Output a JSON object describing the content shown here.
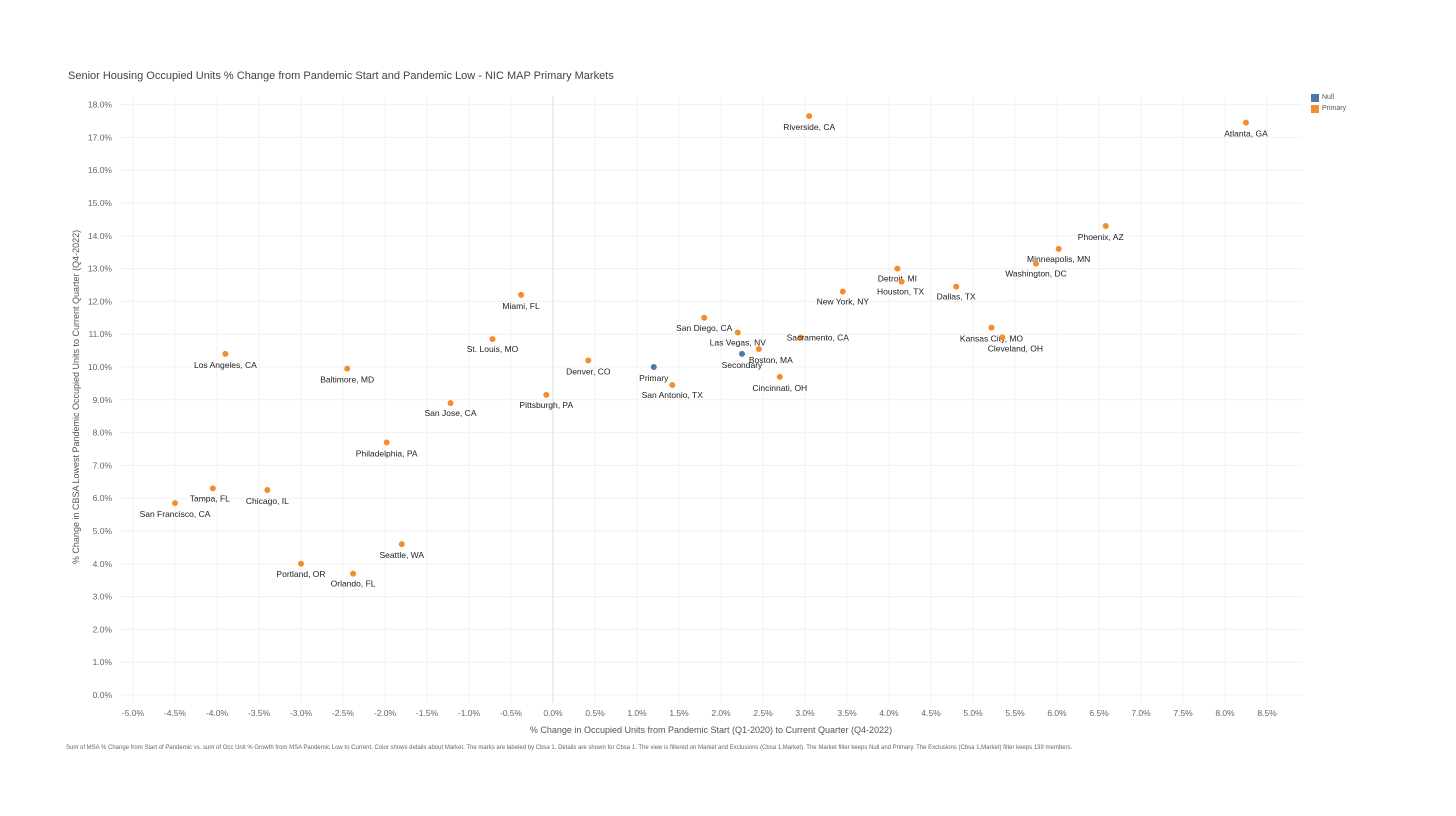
{
  "title": "Senior Housing Occupied Units % Change from Pandemic Start and Pandemic Low   - NIC MAP Primary Markets",
  "legend": {
    "items": [
      {
        "label": "Null",
        "color": "#4e79a7"
      },
      {
        "label": "Primary",
        "color": "#f28e2b"
      }
    ]
  },
  "footnote": "Sum of MSA % Change from Start of Pandemic vs. sum of Occ Unit % Growth from MSA Pandemic Low to Current.  Color shows details about Market.  The marks are labeled by Cbsa 1.  Details are shown for Cbsa 1. The view is filtered on Market and Exclusions (Cbsa 1,Market). The Market filter keeps Null and Primary. The Exclusions (Cbsa 1,Market) filter keeps 139 members.",
  "chart_data": {
    "type": "scatter",
    "xlabel": "% Change in Occupied Units from Pandemic Start (Q1-2020) to Current Quarter (Q4-2022)",
    "ylabel": "% Change in CBSA Lowest Pandemic Occupied Units to Current Quarter (Q4-2022)",
    "xlim": [
      -5.0,
      8.5
    ],
    "ylim": [
      0.0,
      18.0
    ],
    "x_ticks": [
      "-5.0%",
      "-4.5%",
      "-4.0%",
      "-3.5%",
      "-3.0%",
      "-2.5%",
      "-2.0%",
      "-1.5%",
      "-1.0%",
      "-0.5%",
      "0.0%",
      "0.5%",
      "1.0%",
      "1.5%",
      "2.0%",
      "2.5%",
      "3.0%",
      "3.5%",
      "4.0%",
      "4.5%",
      "5.0%",
      "5.5%",
      "6.0%",
      "6.5%",
      "7.0%",
      "7.5%",
      "8.0%",
      "8.5%"
    ],
    "y_ticks": [
      "0.0%",
      "1.0%",
      "2.0%",
      "3.0%",
      "4.0%",
      "5.0%",
      "6.0%",
      "7.0%",
      "8.0%",
      "9.0%",
      "10.0%",
      "11.0%",
      "12.0%",
      "13.0%",
      "14.0%",
      "15.0%",
      "16.0%",
      "17.0%",
      "18.0%"
    ],
    "grid": true,
    "legend_placement": "top-right",
    "points": [
      {
        "label": "Riverside, CA",
        "x": 3.05,
        "y": 17.65,
        "market": "Primary"
      },
      {
        "label": "Atlanta, GA",
        "x": 8.25,
        "y": 17.45,
        "market": "Primary"
      },
      {
        "label": "Phoenix, AZ",
        "x": 6.58,
        "y": 14.3,
        "market": "Primary"
      },
      {
        "label": "Minneapolis, MN",
        "x": 6.02,
        "y": 13.6,
        "market": "Primary"
      },
      {
        "label": "Washington, DC",
        "x": 5.75,
        "y": 13.15,
        "market": "Primary"
      },
      {
        "label": "Detroit, MI",
        "x": 4.1,
        "y": 13.0,
        "market": "Primary"
      },
      {
        "label": "Houston, TX",
        "x": 4.15,
        "y": 12.6,
        "market": "Primary"
      },
      {
        "label": "Dallas, TX",
        "x": 4.8,
        "y": 12.45,
        "market": "Primary"
      },
      {
        "label": "New York, NY",
        "x": 3.45,
        "y": 12.3,
        "market": "Primary"
      },
      {
        "label": "Kansas City, MO",
        "x": 5.22,
        "y": 11.2,
        "market": "Primary"
      },
      {
        "label": "Cleveland, OH",
        "x": 5.35,
        "y": 10.9,
        "market": "Primary"
      },
      {
        "label": "San Diego, CA",
        "x": 1.8,
        "y": 11.5,
        "market": "Primary"
      },
      {
        "label": "Las Vegas, NV",
        "x": 2.2,
        "y": 11.05,
        "market": "Primary"
      },
      {
        "label": "Sacramento, CA",
        "x": 2.95,
        "y": 10.9,
        "market": "Primary"
      },
      {
        "label": "Boston, MA",
        "x": 2.45,
        "y": 10.55,
        "market": "Primary"
      },
      {
        "label": "Secondary",
        "x": 2.25,
        "y": 10.4,
        "market": "Null"
      },
      {
        "label": "Cincinnati, OH",
        "x": 2.7,
        "y": 9.7,
        "market": "Primary"
      },
      {
        "label": "Primary",
        "x": 1.2,
        "y": 10.0,
        "market": "Null"
      },
      {
        "label": "San Antonio, TX",
        "x": 1.42,
        "y": 9.45,
        "market": "Primary"
      },
      {
        "label": "Denver, CO",
        "x": 0.42,
        "y": 10.2,
        "market": "Primary"
      },
      {
        "label": "Pittsburgh, PA",
        "x": -0.08,
        "y": 9.15,
        "market": "Primary"
      },
      {
        "label": "Miami, FL",
        "x": -0.38,
        "y": 12.2,
        "market": "Primary"
      },
      {
        "label": "St. Louis, MO",
        "x": -0.72,
        "y": 10.85,
        "market": "Primary"
      },
      {
        "label": "San Jose, CA",
        "x": -1.22,
        "y": 8.9,
        "market": "Primary"
      },
      {
        "label": "Baltimore, MD",
        "x": -2.45,
        "y": 9.95,
        "market": "Primary"
      },
      {
        "label": "Los Angeles, CA",
        "x": -3.9,
        "y": 10.4,
        "market": "Primary"
      },
      {
        "label": "Philadelphia, PA",
        "x": -1.98,
        "y": 7.7,
        "market": "Primary"
      },
      {
        "label": "Tampa, FL",
        "x": -4.05,
        "y": 6.3,
        "market": "Primary"
      },
      {
        "label": "Chicago, IL",
        "x": -3.4,
        "y": 6.25,
        "market": "Primary"
      },
      {
        "label": "San Francisco, CA",
        "x": -4.5,
        "y": 5.85,
        "market": "Primary"
      },
      {
        "label": "Seattle, WA",
        "x": -1.8,
        "y": 4.6,
        "market": "Primary"
      },
      {
        "label": "Portland, OR",
        "x": -3.0,
        "y": 4.0,
        "market": "Primary"
      },
      {
        "label": "Orlando, FL",
        "x": -2.38,
        "y": 3.7,
        "market": "Primary"
      }
    ]
  }
}
